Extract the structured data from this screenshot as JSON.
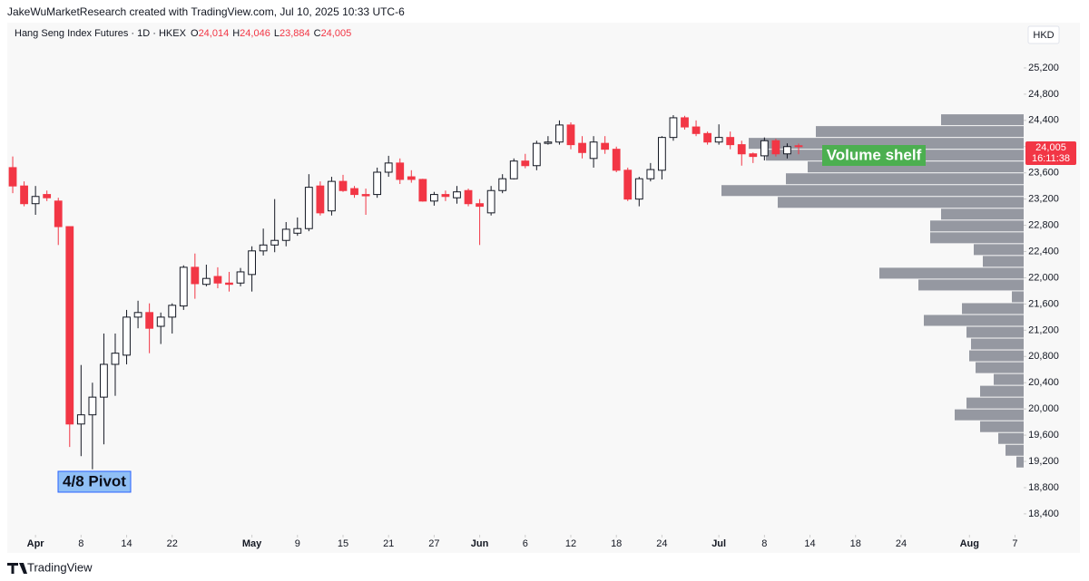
{
  "header": {
    "credit": "JakeWuMarketResearch created with TradingView.com, Jul 10, 2025 10:33 UTC-6",
    "brand": "TradingView"
  },
  "chart_data": {
    "type": "candlestick",
    "title": "Hang Seng Index Futures · 1D · HKEX",
    "legend_items": [
      {
        "key": "O",
        "value": "24,014"
      },
      {
        "key": "H",
        "value": "24,046"
      },
      {
        "key": "L",
        "value": "23,884"
      },
      {
        "key": "C",
        "value": "24,005"
      }
    ],
    "currency": "HKD",
    "countdown": "16:11:38",
    "up_color": "#ffffff",
    "down_color": "#f23645",
    "outline_color": "#131722",
    "x": [
      0,
      1,
      2,
      3,
      4,
      5,
      6,
      7,
      8,
      9,
      10,
      11,
      12,
      13,
      14,
      15,
      16,
      17,
      18,
      19,
      20,
      21,
      22,
      23,
      24,
      25,
      26,
      27,
      28,
      29,
      30,
      31,
      32,
      33,
      34,
      35,
      36,
      37,
      38,
      39,
      40,
      41,
      42,
      43,
      44,
      45,
      46,
      47,
      48,
      49,
      50,
      51,
      52,
      53,
      54,
      55,
      56,
      57,
      58,
      59,
      60,
      61,
      62,
      63,
      64,
      65,
      66,
      67,
      68,
      69
    ],
    "open": [
      23680,
      23400,
      23130,
      23270,
      23170,
      22780,
      19770,
      19910,
      20180,
      20680,
      20820,
      21400,
      21470,
      21260,
      21400,
      21570,
      22160,
      21900,
      22020,
      21920,
      21920,
      22050,
      22410,
      22500,
      22570,
      22680,
      22750,
      23400,
      23020,
      23470,
      23360,
      23270,
      23270,
      23610,
      23750,
      23540,
      23500,
      23170,
      23270,
      23220,
      23330,
      23130,
      22990,
      23330,
      23510,
      23780,
      23710,
      24050,
      24070,
      24330,
      24050,
      23820,
      24050,
      23960,
      23640,
      23200,
      23510,
      23640,
      24140,
      24440,
      24300,
      24200,
      24070,
      24140,
      24030,
      23890,
      23860,
      24090,
      23890,
      24014
    ],
    "high": [
      23850,
      23470,
      23400,
      23330,
      23220,
      22780,
      20670,
      20400,
      21150,
      21150,
      21510,
      21650,
      21610,
      21470,
      21610,
      22190,
      22370,
      22200,
      22160,
      22090,
      22150,
      22480,
      22750,
      23200,
      22850,
      22920,
      23580,
      23470,
      23540,
      23570,
      23400,
      23360,
      23680,
      23860,
      23820,
      23640,
      23510,
      23310,
      23330,
      23400,
      23360,
      23200,
      23400,
      23580,
      23820,
      23890,
      24090,
      24160,
      24400,
      24370,
      24160,
      24160,
      24160,
      24000,
      23680,
      23540,
      23750,
      24160,
      24480,
      24470,
      24400,
      24230,
      24340,
      24230,
      24090,
      23910,
      24140,
      24120,
      24050,
      24046
    ],
    "low": [
      23290,
      23090,
      22960,
      23170,
      22500,
      19420,
      19280,
      19080,
      19460,
      20200,
      20680,
      21230,
      20850,
      20990,
      21150,
      21510,
      21680,
      21870,
      21840,
      21790,
      21870,
      21790,
      22340,
      22390,
      22480,
      22640,
      22710,
      22950,
      22950,
      23310,
      23220,
      22960,
      23220,
      23540,
      23430,
      23450,
      23160,
      23100,
      23170,
      23130,
      23090,
      22500,
      22950,
      23290,
      23500,
      23670,
      23640,
      24030,
      24030,
      23960,
      23820,
      23680,
      23890,
      23610,
      23170,
      23090,
      23470,
      23500,
      24090,
      24260,
      24160,
      24030,
      24030,
      23960,
      23710,
      23750,
      23790,
      23850,
      23820,
      23884
    ],
    "close": [
      23400,
      23130,
      23240,
      23220,
      22780,
      19770,
      19910,
      20180,
      20680,
      20850,
      21400,
      21470,
      21230,
      21400,
      21580,
      22160,
      21910,
      21990,
      21920,
      21900,
      22090,
      22410,
      22500,
      22570,
      22740,
      22750,
      23380,
      22990,
      23470,
      23330,
      23270,
      23250,
      23610,
      23750,
      23500,
      23500,
      23170,
      23270,
      23240,
      23310,
      23130,
      23090,
      23330,
      23510,
      23780,
      23710,
      24050,
      24070,
      24330,
      24030,
      23910,
      24070,
      23960,
      23640,
      23200,
      23510,
      23650,
      24140,
      24440,
      24300,
      24200,
      24070,
      24140,
      24030,
      23890,
      23850,
      24090,
      23890,
      24000,
      24005
    ],
    "xlim": [
      -0.48,
      88.76
    ],
    "xticks": [
      {
        "value": 2,
        "label": "Apr"
      },
      {
        "value": 6,
        "label": "8"
      },
      {
        "value": 10,
        "label": "14"
      },
      {
        "value": 14,
        "label": "22"
      },
      {
        "value": 21,
        "label": "May"
      },
      {
        "value": 25,
        "label": "9"
      },
      {
        "value": 29,
        "label": "15"
      },
      {
        "value": 33,
        "label": "21"
      },
      {
        "value": 37,
        "label": "27"
      },
      {
        "value": 41,
        "label": "Jun"
      },
      {
        "value": 45,
        "label": "6"
      },
      {
        "value": 49,
        "label": "12"
      },
      {
        "value": 53,
        "label": "18"
      },
      {
        "value": 57,
        "label": "24"
      },
      {
        "value": 62,
        "label": "Jul"
      },
      {
        "value": 66,
        "label": "8"
      },
      {
        "value": 70,
        "label": "14"
      },
      {
        "value": 74,
        "label": "18"
      },
      {
        "value": 78,
        "label": "24"
      },
      {
        "value": 84,
        "label": "Aug"
      },
      {
        "value": 88,
        "label": "7"
      }
    ],
    "ylim": [
      18150,
      25545
    ],
    "yticks": [
      {
        "value": 18400,
        "label": "18,400"
      },
      {
        "value": 18800,
        "label": "18,800"
      },
      {
        "value": 19200,
        "label": "19,200"
      },
      {
        "value": 19600,
        "label": "19,600"
      },
      {
        "value": 20000,
        "label": "20,000"
      },
      {
        "value": 20400,
        "label": "20,400"
      },
      {
        "value": 20800,
        "label": "20,800"
      },
      {
        "value": 21200,
        "label": "21,200"
      },
      {
        "value": 21600,
        "label": "21,600"
      },
      {
        "value": 22000,
        "label": "22,000"
      },
      {
        "value": 22400,
        "label": "22,400"
      },
      {
        "value": 22800,
        "label": "22,800"
      },
      {
        "value": 23200,
        "label": "23,200"
      },
      {
        "value": 23600,
        "label": "23,600"
      },
      {
        "value": 24000,
        "label": "24,000"
      },
      {
        "value": 24400,
        "label": "24,400"
      },
      {
        "value": 24800,
        "label": "24,800"
      },
      {
        "value": 25200,
        "label": "25,200"
      }
    ],
    "profile": {
      "color": "#9598a1",
      "xlim": [
        0,
        1120
      ],
      "bins": [
        24500,
        24320,
        24140,
        23960,
        23780,
        23600,
        23420,
        23240,
        23060,
        22880,
        22700,
        22520,
        22340,
        22160,
        21980,
        21800,
        21620,
        21440,
        21260,
        21080,
        20900,
        20720,
        20540,
        20360,
        20180,
        20000,
        19820,
        19640,
        19460,
        19280,
        19100
      ],
      "values": [
        91,
        229,
        303,
        284,
        238,
        262,
        333,
        271,
        91,
        103,
        103,
        55,
        45,
        159,
        116,
        13,
        68,
        110,
        63,
        58,
        60,
        53,
        33,
        48,
        63,
        76,
        48,
        28,
        20,
        8
      ]
    },
    "annotations": [
      {
        "text": "4/8 Pivot"
      },
      {
        "text": "Volume shelf"
      }
    ]
  }
}
